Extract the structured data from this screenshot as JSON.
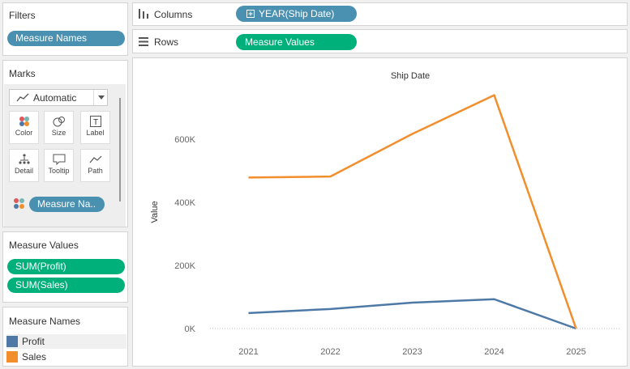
{
  "filters": {
    "title": "Filters",
    "pill": "Measure Names"
  },
  "marks": {
    "title": "Marks",
    "type_label": "Automatic",
    "buttons": [
      {
        "label": "Color",
        "icon": "color-icon"
      },
      {
        "label": "Size",
        "icon": "size-icon"
      },
      {
        "label": "Label",
        "icon": "label-icon"
      },
      {
        "label": "Detail",
        "icon": "detail-icon"
      },
      {
        "label": "Tooltip",
        "icon": "tooltip-icon"
      },
      {
        "label": "Path",
        "icon": "path-icon"
      }
    ],
    "color_pill": "Measure Na.."
  },
  "measure_values": {
    "title": "Measure Values",
    "items": [
      "SUM(Profit)",
      "SUM(Sales)"
    ]
  },
  "legend": {
    "title": "Measure Names",
    "items": [
      {
        "label": "Profit",
        "color": "#4e79a7"
      },
      {
        "label": "Sales",
        "color": "#f28e2b"
      }
    ]
  },
  "shelves": {
    "columns_label": "Columns",
    "columns_pill": "YEAR(Ship Date)",
    "rows_label": "Rows",
    "rows_pill": "Measure Values"
  },
  "chart_data": {
    "type": "line",
    "title": "Ship Date",
    "xlabel": "",
    "ylabel": "Value",
    "categories": [
      "2021",
      "2022",
      "2023",
      "2024",
      "2025"
    ],
    "ylim": [
      0,
      780000
    ],
    "yticks": [
      0,
      200000,
      400000,
      600000
    ],
    "ytick_labels": [
      "0K",
      "200K",
      "400K",
      "600K"
    ],
    "series": [
      {
        "name": "Profit",
        "color": "#4e79a7",
        "values": [
          49000,
          62000,
          82000,
          93000,
          0
        ]
      },
      {
        "name": "Sales",
        "color": "#f28e2b",
        "values": [
          479000,
          482000,
          617000,
          740000,
          0
        ]
      }
    ]
  }
}
